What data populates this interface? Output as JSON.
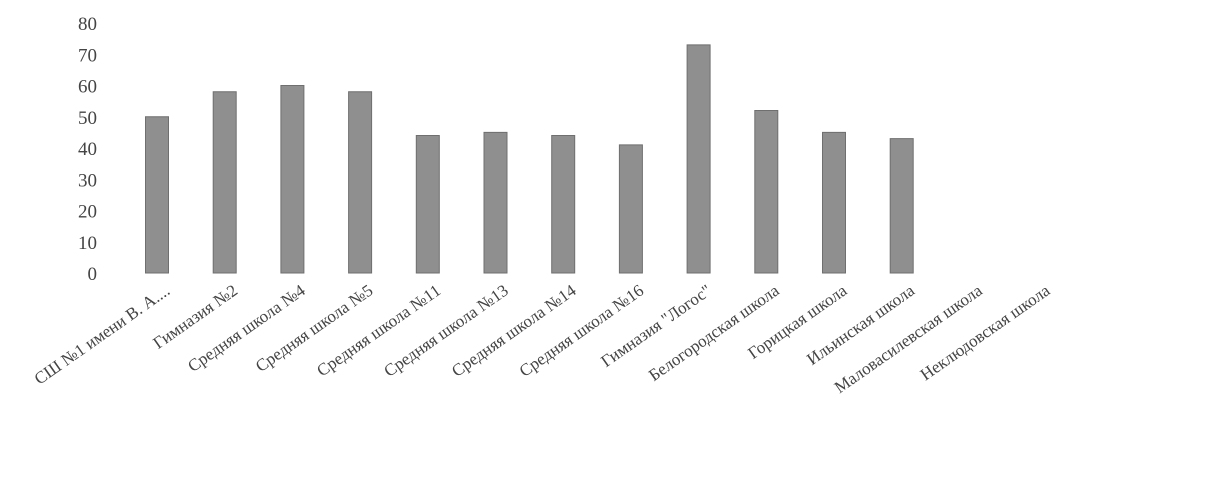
{
  "chart_data": {
    "type": "bar",
    "categories": [
      "СШ №1 имени В. А....",
      "Гимназия №2",
      "Средняя школа №4",
      "Средняя школа №5",
      "Средняя школа №11",
      "Средняя школа №13",
      "Средняя школа №14",
      "Средняя школа №16",
      "Гимназия \"Логос\"",
      "Белогородская школа",
      "Горицкая школа",
      "Ильинская школа",
      "Маловасилевская школа",
      "Неклюдовская школа"
    ],
    "values": [
      50,
      58,
      60,
      58,
      44,
      45,
      44,
      41,
      73,
      52,
      45,
      43,
      0,
      0
    ],
    "yticks": [
      "0",
      "10",
      "20",
      "30",
      "40",
      "50",
      "60",
      "70",
      "80"
    ],
    "ylim": [
      0,
      80
    ],
    "bar_color": "#8f8f8f",
    "bar_edge_color": "#6f6f6f",
    "title": "",
    "xlabel": "",
    "ylabel": "",
    "grid": false,
    "legend": "none"
  }
}
